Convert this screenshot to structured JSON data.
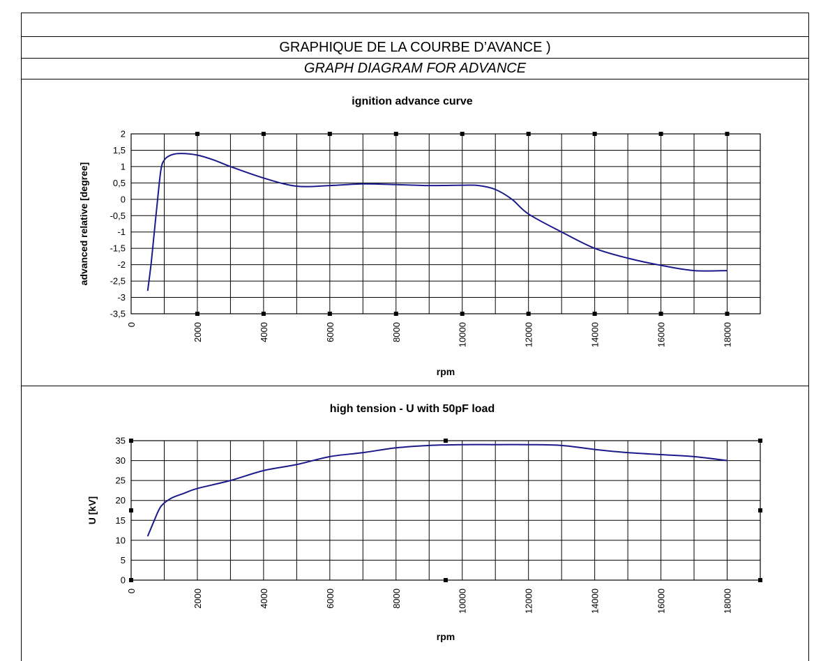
{
  "header": {
    "title_fr": "GRAPHIQUE DE LA COURBE D’AVANCE )",
    "title_en": "GRAPH DIAGRAM FOR ADVANCE"
  },
  "colors": {
    "line": "#1a1a8c",
    "grid": "#000000"
  },
  "chart_data": [
    {
      "type": "line",
      "title": "ignition advance curve",
      "xlabel": "rpm",
      "ylabel": "advanced relative [degree]",
      "xlim": [
        0,
        19000
      ],
      "ylim": [
        -3.5,
        2
      ],
      "grid": true,
      "x_tick_labels": [
        "0",
        "2000",
        "4000",
        "6000",
        "8000",
        "10000",
        "12000",
        "14000",
        "16000",
        "18000"
      ],
      "y_tick_labels": [
        "2",
        "1,5",
        "1",
        "0,5",
        "0",
        "-0,5",
        "-1",
        "-1,5",
        "-2",
        "-2,5",
        "-3",
        "-3,5"
      ],
      "series": [
        {
          "x": [
            500,
            600,
            700,
            800,
            900,
            1000,
            1200,
            1500,
            2000,
            2500,
            3000,
            4000,
            5000,
            6000,
            7000,
            8000,
            9000,
            10000,
            10500,
            11000,
            11500,
            12000,
            13000,
            14000,
            15000,
            16000,
            17000,
            18000
          ],
          "y": [
            -2.8,
            -2.0,
            -1.0,
            0.0,
            0.9,
            1.2,
            1.35,
            1.4,
            1.35,
            1.2,
            1.0,
            0.65,
            0.4,
            0.42,
            0.47,
            0.45,
            0.42,
            0.43,
            0.42,
            0.3,
            0.0,
            -0.45,
            -1.0,
            -1.5,
            -1.8,
            -2.02,
            -2.18,
            -2.18
          ]
        }
      ]
    },
    {
      "type": "line",
      "title": "high tension - U with 50pF load",
      "xlabel": "rpm",
      "ylabel": "U [kV]",
      "xlim": [
        0,
        19000
      ],
      "ylim": [
        0,
        35
      ],
      "grid": true,
      "x_tick_labels": [
        "0",
        "2000",
        "4000",
        "6000",
        "8000",
        "10000",
        "12000",
        "14000",
        "16000",
        "18000"
      ],
      "y_tick_labels": [
        "35",
        "30",
        "25",
        "20",
        "15",
        "10",
        "5",
        "0"
      ],
      "series": [
        {
          "x": [
            500,
            700,
            900,
            1200,
            1600,
            2000,
            3000,
            4000,
            5000,
            6000,
            7000,
            8000,
            9000,
            10000,
            11000,
            12000,
            13000,
            14000,
            15000,
            16000,
            17000,
            18000
          ],
          "y": [
            11,
            15,
            18.5,
            20.5,
            21.8,
            23,
            25,
            27.5,
            29,
            31,
            32,
            33.2,
            33.8,
            34,
            34,
            34,
            33.8,
            32.8,
            32,
            31.5,
            31,
            30
          ]
        }
      ]
    }
  ]
}
